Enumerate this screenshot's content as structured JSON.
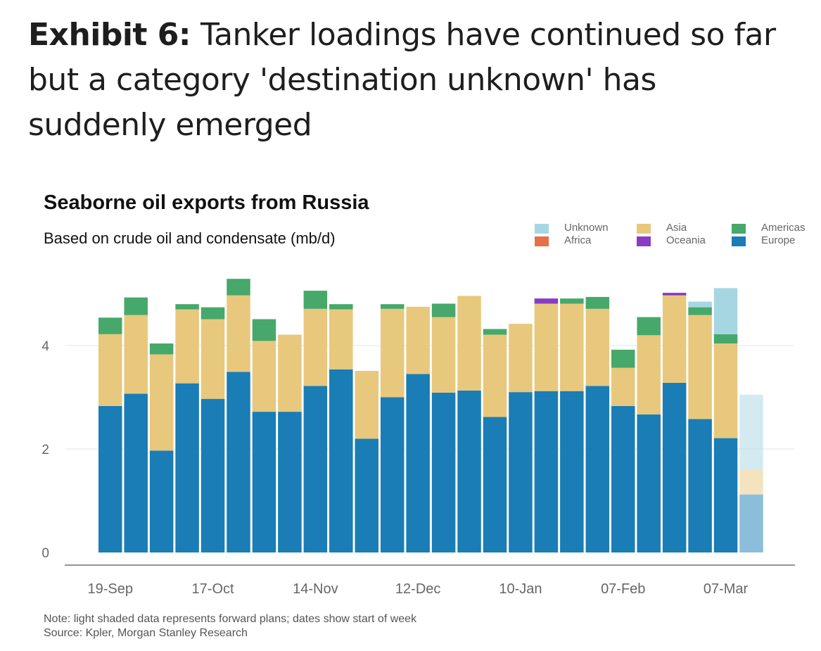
{
  "exhibit": {
    "label": "Exhibit 6:",
    "title": "Tanker loadings have continued so far but a category 'destination unknown' has suddenly emerged"
  },
  "note": "Note: light shaded data represents forward plans; dates show start of week",
  "source": "Source: Kpler, Morgan Stanley Research",
  "colors": {
    "Europe": "#1a7db5",
    "Asia": "#e8c87d",
    "Americas": "#46a86a",
    "Oceania": "#8a3bc6",
    "Africa": "#e5704a",
    "Unknown": "#a7d6e3"
  },
  "legend": [
    {
      "name": "Unknown",
      "color": "#a7d6e3"
    },
    {
      "name": "Africa",
      "color": "#e5704a"
    },
    {
      "name": "Asia",
      "color": "#e8c87d"
    },
    {
      "name": "Oceania",
      "color": "#8a3bc6"
    },
    {
      "name": "Americas",
      "color": "#46a86a"
    },
    {
      "name": "Europe",
      "color": "#1a7db5"
    }
  ],
  "chart_data": {
    "type": "bar",
    "stacked": true,
    "title": "Seaborne oil exports from Russia",
    "subtitle": "Based on crude oil and condensate (mb/d)",
    "xlabel": "",
    "ylabel": "",
    "ylim": [
      0,
      5.5
    ],
    "yticks": [
      0,
      2,
      4
    ],
    "grid": "horizontal",
    "legend_position": "top-right",
    "x_tick_labels": [
      "19-Sep",
      "17-Oct",
      "14-Nov",
      "12-Dec",
      "10-Jan",
      "07-Feb",
      "07-Mar"
    ],
    "x_tick_label_positions": [
      0,
      4,
      8,
      12,
      16,
      20,
      24
    ],
    "categories": [
      "19-Sep",
      "26-Sep",
      "03-Oct",
      "10-Oct",
      "17-Oct",
      "24-Oct",
      "31-Oct",
      "07-Nov",
      "14-Nov",
      "21-Nov",
      "28-Nov",
      "05-Dec",
      "12-Dec",
      "19-Dec",
      "26-Dec",
      "02-Jan",
      "10-Jan",
      "17-Jan",
      "24-Jan",
      "31-Jan",
      "07-Feb",
      "14-Feb",
      "21-Feb",
      "28-Feb",
      "07-Mar",
      "14-Mar"
    ],
    "forward_plan_index": [
      25
    ],
    "series": [
      {
        "name": "Europe",
        "values": [
          2.83,
          3.07,
          1.97,
          3.27,
          2.97,
          3.49,
          2.72,
          2.72,
          3.22,
          3.54,
          2.2,
          3.0,
          3.45,
          3.09,
          3.13,
          2.62,
          3.1,
          3.12,
          3.12,
          3.22,
          2.83,
          2.67,
          3.28,
          2.58,
          2.21,
          1.12
        ]
      },
      {
        "name": "Asia",
        "values": [
          1.39,
          1.52,
          1.86,
          1.43,
          1.54,
          1.48,
          1.37,
          1.49,
          1.49,
          1.16,
          1.31,
          1.71,
          1.3,
          1.46,
          1.83,
          1.59,
          1.32,
          1.69,
          1.69,
          1.49,
          0.74,
          1.53,
          1.69,
          2.01,
          1.83,
          0.48
        ]
      },
      {
        "name": "Americas",
        "values": [
          0.32,
          0.34,
          0.21,
          0.1,
          0.23,
          0.32,
          0.42,
          0.0,
          0.35,
          0.1,
          0.0,
          0.09,
          0.0,
          0.26,
          0.0,
          0.11,
          0.0,
          0.0,
          0.1,
          0.23,
          0.35,
          0.35,
          0.0,
          0.15,
          0.18,
          0.0
        ]
      },
      {
        "name": "Oceania",
        "values": [
          0,
          0,
          0,
          0,
          0,
          0,
          0,
          0,
          0,
          0,
          0,
          0,
          0,
          0,
          0,
          0,
          0,
          0.1,
          0,
          0,
          0,
          0,
          0.05,
          0,
          0,
          0
        ]
      },
      {
        "name": "Africa",
        "values": [
          0,
          0,
          0,
          0,
          0,
          0,
          0,
          0,
          0,
          0,
          0,
          0,
          0,
          0,
          0,
          0,
          0,
          0,
          0,
          0,
          0,
          0,
          0,
          0,
          0,
          0
        ]
      },
      {
        "name": "Unknown",
        "values": [
          0,
          0,
          0,
          0,
          0,
          0,
          0,
          0,
          0,
          0,
          0,
          0,
          0,
          0,
          0,
          0,
          0,
          0,
          0,
          0,
          0,
          0,
          0,
          0.11,
          0.89,
          1.45
        ]
      }
    ]
  }
}
